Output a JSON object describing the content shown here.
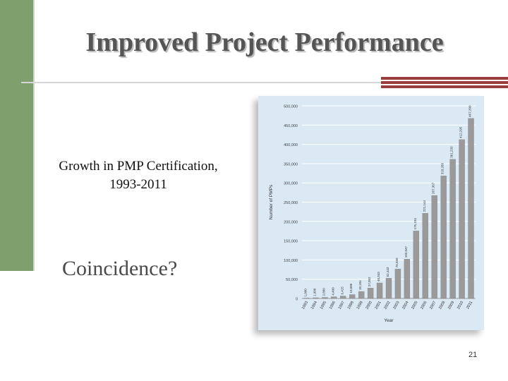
{
  "slide": {
    "title": "Improved Project Performance",
    "caption_line1": "Growth in PMP Certification,",
    "caption_line2": "1993-2011",
    "coincidence": "Coincidence?",
    "page_number": "21"
  },
  "colors": {
    "accent_green": "#7f9f6d",
    "accent_red": "#9a3d3d",
    "chart_bg": "#dbe9f5",
    "bar_fill": "#9a9a9a"
  },
  "chart_data": {
    "type": "bar",
    "xlabel": "Year",
    "ylabel": "Number of PMPs",
    "ylim": [
      0,
      500000
    ],
    "yticks": [
      "0",
      "50,000",
      "100,000",
      "150,000",
      "200,000",
      "250,000",
      "300,000",
      "350,000",
      "400,000",
      "450,000",
      "500,000"
    ],
    "categories": [
      "1993",
      "1994",
      "1995",
      "1996",
      "1997",
      "1998",
      "1999",
      "2000",
      "2001",
      "2002",
      "2003",
      "2004",
      "2005",
      "2006",
      "2007",
      "2008",
      "2009",
      "2010",
      "2011"
    ],
    "values": [
      1000,
      1900,
      2800,
      4400,
      6415,
      10086,
      18184,
      27052,
      40343,
      52443,
      76550,
      102047,
      175194,
      221144,
      267367,
      318289,
      361233,
      412295,
      467390
    ],
    "data_labels": [
      "1,000",
      "1,900",
      "2,800",
      "4,400",
      "6,415",
      "10,086",
      "18,184",
      "27,052",
      "40,343",
      "52,443",
      "76,550",
      "102,047",
      "175,194",
      "221,144",
      "267,367",
      "318,289",
      "361,233",
      "412,295",
      "467,390"
    ],
    "grid": true
  }
}
